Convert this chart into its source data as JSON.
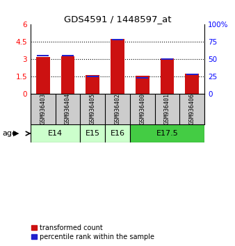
{
  "title": "GDS4591 / 1448597_at",
  "samples": [
    "GSM936403",
    "GSM936404",
    "GSM936405",
    "GSM936402",
    "GSM936400",
    "GSM936401",
    "GSM936406"
  ],
  "transformed_counts": [
    3.2,
    3.25,
    1.6,
    4.75,
    1.55,
    3.05,
    1.75
  ],
  "percentile_ranks": [
    55,
    55,
    25,
    78,
    23,
    50,
    28
  ],
  "ylim_left": [
    0,
    6
  ],
  "ylim_right": [
    0,
    100
  ],
  "yticks_left": [
    0,
    1.5,
    3.0,
    4.5,
    6
  ],
  "yticks_right": [
    0,
    25,
    50,
    75,
    100
  ],
  "bar_color_red": "#cc1111",
  "bar_color_blue": "#2222cc",
  "bar_width": 0.55,
  "background_color": "#ffffff",
  "sample_box_color": "#cccccc",
  "age_groups": [
    {
      "label": "E14",
      "start": 0,
      "end": 1,
      "color": "#ccffcc"
    },
    {
      "label": "E15",
      "start": 2,
      "end": 2,
      "color": "#ccffcc"
    },
    {
      "label": "E16",
      "start": 3,
      "end": 3,
      "color": "#ccffcc"
    },
    {
      "label": "E17.5",
      "start": 4,
      "end": 6,
      "color": "#44cc44"
    }
  ]
}
